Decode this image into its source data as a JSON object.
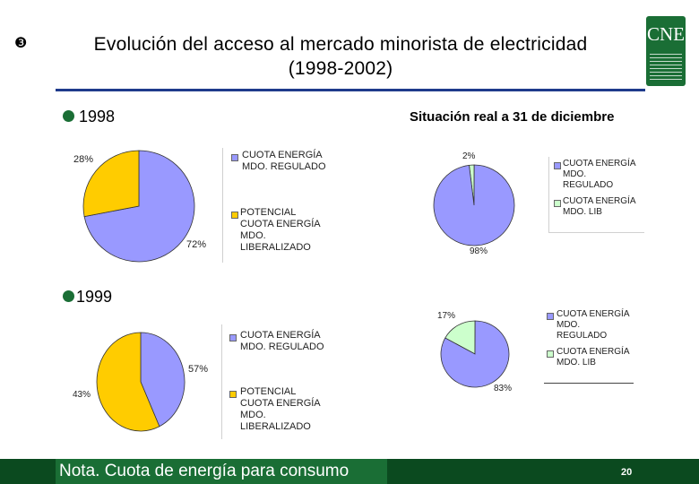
{
  "header": {
    "bullet": "❸",
    "title_line1": "Evolución del acceso al mercado minorista de electricidad",
    "title_line2": "(1998-2002)",
    "logo_text": "CNE"
  },
  "colors": {
    "regulated": "#9999ff",
    "liberalized_potential": "#ffcc00",
    "liberalized": "#ccffcc",
    "accent_green": "#1a6e35",
    "dark_green": "#0b4a1f",
    "blue_rule": "#1f3b8c"
  },
  "section_1998": {
    "label": "1998"
  },
  "section_1999": {
    "label": "1999"
  },
  "situation_title": "Situación real a 31 de diciembre",
  "footer": {
    "note": "Nota. Cuota de energía para consumo",
    "page": "20"
  },
  "chart_data": [
    {
      "type": "pie",
      "id": "pie-1998",
      "series": [
        {
          "name": "CUOTA ENERGÍA MDO. REGULADO",
          "value": 72,
          "label": "72%",
          "color": "#9999ff"
        },
        {
          "name": "POTENCIAL CUOTA ENERGÍA MDO. LIBERALIZADO",
          "value": 28,
          "label": "28%",
          "color": "#ffcc00"
        }
      ],
      "legend": [
        [
          "CUOTA ENERGÍA",
          "MDO. REGULADO"
        ],
        [
          "POTENCIAL",
          "CUOTA ENERGÍA",
          "MDO.",
          "LIBERALIZADO"
        ]
      ],
      "legend_placement": "right"
    },
    {
      "type": "pie",
      "id": "pie-1998-real",
      "series": [
        {
          "name": "CUOTA ENERGÍA MDO. REGULADO",
          "value": 98,
          "label": "98%",
          "color": "#9999ff"
        },
        {
          "name": "CUOTA ENERGÍA MDO. LIB",
          "value": 2,
          "label": "2%",
          "color": "#ccffcc"
        }
      ],
      "legend": [
        [
          "CUOTA ENERGÍA",
          "MDO.",
          "REGULADO"
        ],
        [
          "CUOTA ENERGÍA",
          "MDO. LIB"
        ]
      ],
      "legend_placement": "right"
    },
    {
      "type": "pie",
      "id": "pie-1999",
      "series": [
        {
          "name": "CUOTA ENERGÍA MDO. REGULADO",
          "value": 43,
          "label": "43%",
          "color": "#9999ff"
        },
        {
          "name": "POTENCIAL CUOTA ENERGÍA MDO. LIBERALIZADO",
          "value": 57,
          "label": "57%",
          "color": "#ffcc00"
        }
      ],
      "legend": [
        [
          "CUOTA ENERGÍA",
          "MDO. REGULADO"
        ],
        [
          "POTENCIAL",
          "CUOTA ENERGÍA",
          "MDO.",
          "LIBERALIZADO"
        ]
      ],
      "legend_placement": "right"
    },
    {
      "type": "pie",
      "id": "pie-1999-real",
      "series": [
        {
          "name": "CUOTA ENERGÍA MDO. REGULADO",
          "value": 83,
          "label": "83%",
          "color": "#9999ff"
        },
        {
          "name": "CUOTA ENERGÍA MDO. LIB",
          "value": 17,
          "label": "17%",
          "color": "#ccffcc"
        }
      ],
      "legend": [
        [
          "CUOTA ENERGÍA",
          "MDO.",
          "REGULADO"
        ],
        [
          "CUOTA ENERGÍA",
          "MDO. LIB"
        ]
      ],
      "legend_placement": "right"
    }
  ]
}
